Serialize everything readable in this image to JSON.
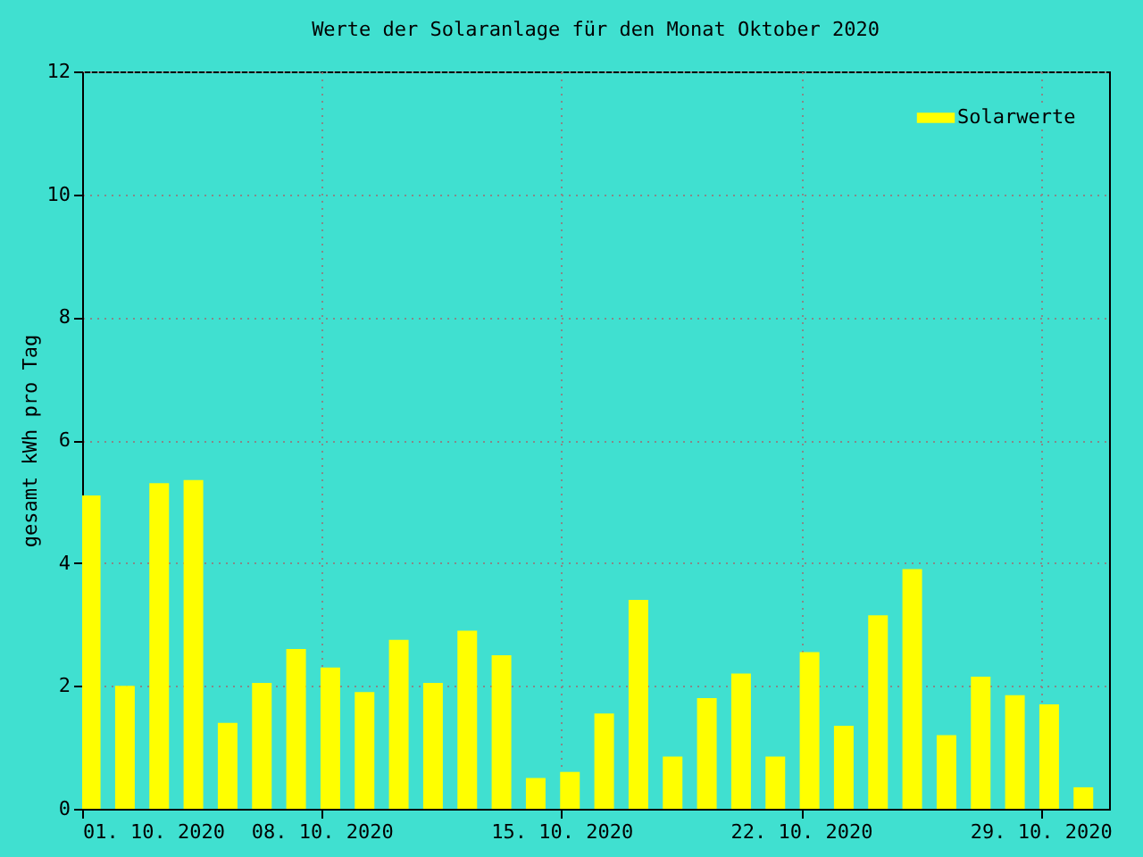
{
  "chart_data": {
    "type": "bar",
    "title": "Werte der Solaranlage für den Monat Oktober 2020",
    "ylabel": "gesamt kWh pro Tag",
    "x": [
      "2020-10-01T06:00",
      "2020-10-02T06:00",
      "2020-10-03T06:00",
      "2020-10-04T06:00",
      "2020-10-05T06:00",
      "2020-10-06T06:00",
      "2020-10-07T06:00",
      "2020-10-08T06:00",
      "2020-10-09T06:00",
      "2020-10-10T06:00",
      "2020-10-11T06:00",
      "2020-10-12T06:00",
      "2020-10-13T06:00",
      "2020-10-14T06:00",
      "2020-10-15T06:00",
      "2020-10-16T06:00",
      "2020-10-17T06:00",
      "2020-10-18T06:00",
      "2020-10-19T06:00",
      "2020-10-20T06:00",
      "2020-10-21T06:00",
      "2020-10-22T06:00",
      "2020-10-23T06:00",
      "2020-10-24T06:00",
      "2020-10-25T06:00",
      "2020-10-26T06:00",
      "2020-10-27T06:00",
      "2020-10-28T06:00",
      "2020-10-29T06:00",
      "2020-10-30T06:00"
    ],
    "series": [
      {
        "name": "Solarwerte",
        "color": "#ffff00",
        "values": [
          5.1,
          2.0,
          5.3,
          5.35,
          1.4,
          2.05,
          2.6,
          2.3,
          1.9,
          2.75,
          2.05,
          2.9,
          2.5,
          0.5,
          0.6,
          1.55,
          3.4,
          0.85,
          1.8,
          2.2,
          0.85,
          2.55,
          1.35,
          3.15,
          3.9,
          1.2,
          2.15,
          1.85,
          1.7,
          0.35
        ]
      }
    ],
    "xlim": [
      "2020-10-01T00:00",
      "2020-10-31T00:00"
    ],
    "xticks": [
      {
        "value": "2020-10-01T00:00",
        "label": "01. 10. 2020"
      },
      {
        "value": "2020-10-08T00:00",
        "label": "08. 10. 2020"
      },
      {
        "value": "2020-10-15T00:00",
        "label": "15. 10. 2020"
      },
      {
        "value": "2020-10-22T00:00",
        "label": "22. 10. 2020"
      },
      {
        "value": "2020-10-29T00:00",
        "label": "29. 10. 2020"
      }
    ],
    "ylim": [
      0,
      12
    ],
    "yticks": [
      0,
      2,
      4,
      6,
      8,
      10,
      12
    ],
    "grid": true,
    "legend": "top right"
  }
}
